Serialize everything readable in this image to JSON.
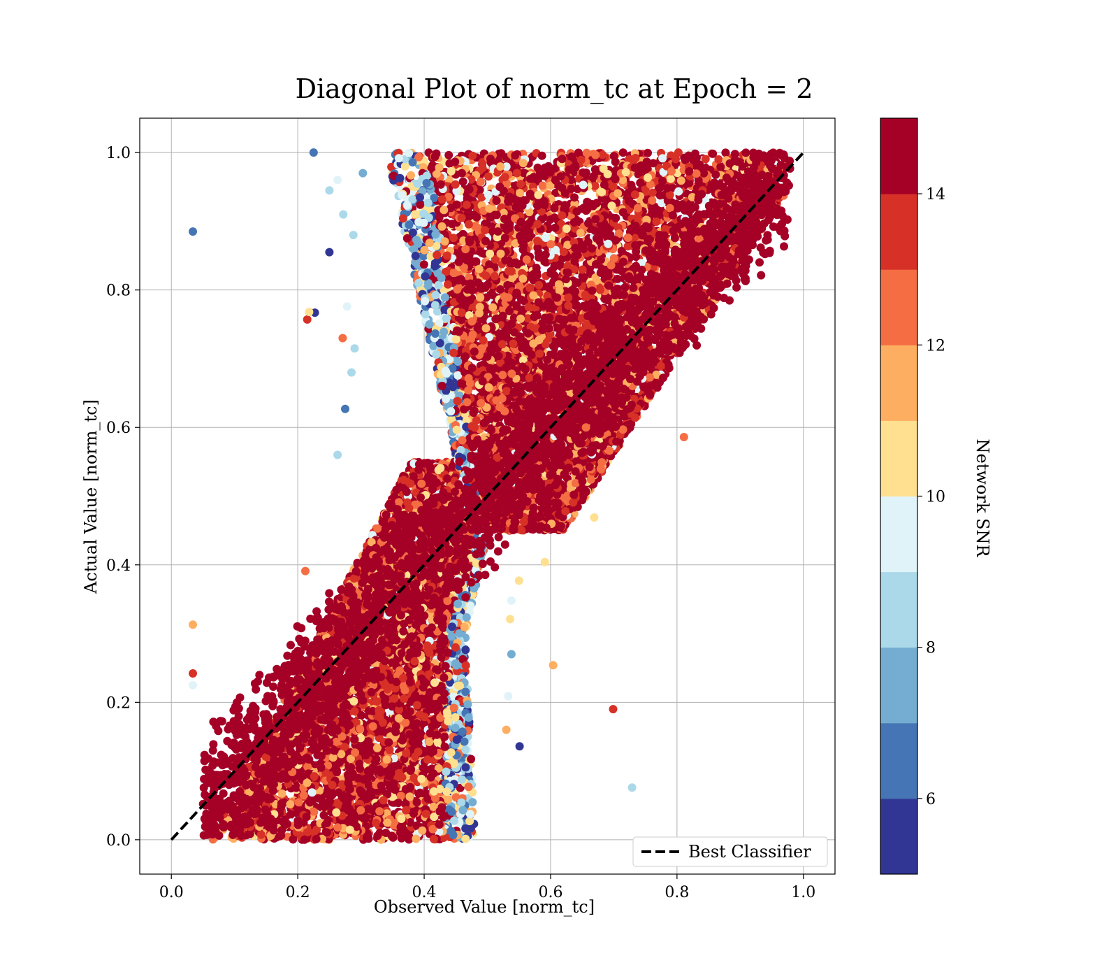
{
  "chart_data": {
    "type": "scatter",
    "title": "Diagonal Plot of norm_tc at Epoch = 2",
    "xlabel": "Observed Value [norm_tc]",
    "ylabel": "Actual Value [norm_tc]",
    "xlim": [
      -0.05,
      1.05
    ],
    "ylim": [
      -0.05,
      1.05
    ],
    "xticks": [
      "0.0",
      "0.2",
      "0.4",
      "0.6",
      "0.8",
      "1.0"
    ],
    "yticks": [
      "0.0",
      "0.2",
      "0.4",
      "0.6",
      "0.8",
      "1.0"
    ],
    "grid": true,
    "legend": {
      "placement": "lower-right",
      "entries": [
        "Best Classifier"
      ]
    },
    "reference_line": {
      "name": "Best Classifier",
      "style": "dashed",
      "color": "#000000",
      "x": [
        0.0,
        1.0
      ],
      "y": [
        0.0,
        1.0
      ]
    },
    "colorbar": {
      "label": "Network SNR",
      "range": [
        5,
        15
      ],
      "ticks": [
        "6",
        "8",
        "10",
        "12",
        "14"
      ],
      "colors": [
        "#313695",
        "#4575b4",
        "#74add1",
        "#abd9e9",
        "#e0f3f8",
        "#fee090",
        "#fdae61",
        "#f46d43",
        "#d73027",
        "#a50026"
      ]
    },
    "point_color_scale": "Network SNR",
    "points_note_count": 0,
    "points": [
      {
        "x": 0.034,
        "y": 0.885,
        "snr": 6.6
      },
      {
        "x": 0.225,
        "y": 1.0,
        "snr": 6.8
      },
      {
        "x": 0.25,
        "y": 0.855,
        "snr": 5.3
      },
      {
        "x": 0.227,
        "y": 0.767,
        "snr": 5.3
      },
      {
        "x": 0.215,
        "y": 0.757,
        "snr": 13.8
      },
      {
        "x": 0.218,
        "y": 0.768,
        "snr": 10.8
      },
      {
        "x": 0.25,
        "y": 0.945,
        "snr": 8.4
      },
      {
        "x": 0.263,
        "y": 0.96,
        "snr": 9.6
      },
      {
        "x": 0.272,
        "y": 0.91,
        "snr": 8.3
      },
      {
        "x": 0.288,
        "y": 0.88,
        "snr": 8.3
      },
      {
        "x": 0.303,
        "y": 0.97,
        "snr": 7.2
      },
      {
        "x": 0.271,
        "y": 0.73,
        "snr": 12.6
      },
      {
        "x": 0.275,
        "y": 0.627,
        "snr": 6.8
      },
      {
        "x": 0.263,
        "y": 0.56,
        "snr": 8.3
      },
      {
        "x": 0.29,
        "y": 0.715,
        "snr": 8.4
      },
      {
        "x": 0.285,
        "y": 0.68,
        "snr": 8.8
      },
      {
        "x": 0.278,
        "y": 0.776,
        "snr": 9.6
      },
      {
        "x": 0.034,
        "y": 0.313,
        "snr": 11.6
      },
      {
        "x": 0.034,
        "y": 0.242,
        "snr": 13.5
      },
      {
        "x": 0.034,
        "y": 0.225,
        "snr": 9.6
      },
      {
        "x": 0.212,
        "y": 0.391,
        "snr": 12.6
      },
      {
        "x": 0.699,
        "y": 0.19,
        "snr": 13.0
      },
      {
        "x": 0.729,
        "y": 0.076,
        "snr": 8.4
      },
      {
        "x": 0.604,
        "y": 0.254,
        "snr": 11.6
      },
      {
        "x": 0.551,
        "y": 0.136,
        "snr": 5.4
      },
      {
        "x": 0.669,
        "y": 0.469,
        "snr": 10.4
      },
      {
        "x": 0.591,
        "y": 0.404,
        "snr": 10.6
      },
      {
        "x": 0.538,
        "y": 0.348,
        "snr": 9.4
      },
      {
        "x": 0.536,
        "y": 0.321,
        "snr": 10.6
      },
      {
        "x": 0.538,
        "y": 0.27,
        "snr": 7.5
      },
      {
        "x": 0.55,
        "y": 0.377,
        "snr": 10.6
      },
      {
        "x": 0.53,
        "y": 0.16,
        "snr": 11.9
      },
      {
        "x": 0.533,
        "y": 0.209,
        "snr": 9.6
      },
      {
        "x": 0.656,
        "y": 0.6,
        "snr": 12.4
      },
      {
        "x": 0.811,
        "y": 0.586,
        "snr": 12.5
      }
    ],
    "dense_regions": [
      {
        "name": "lower-left band",
        "x_center_at_y0": 0.27,
        "x_halfwidth_at_y0": 0.22,
        "y_range": [
          0.0,
          0.5
        ]
      },
      {
        "name": "upper-right band",
        "y_range": [
          0.5,
          1.0
        ],
        "x_range_at_y1": [
          0.34,
          0.98
        ]
      }
    ]
  }
}
